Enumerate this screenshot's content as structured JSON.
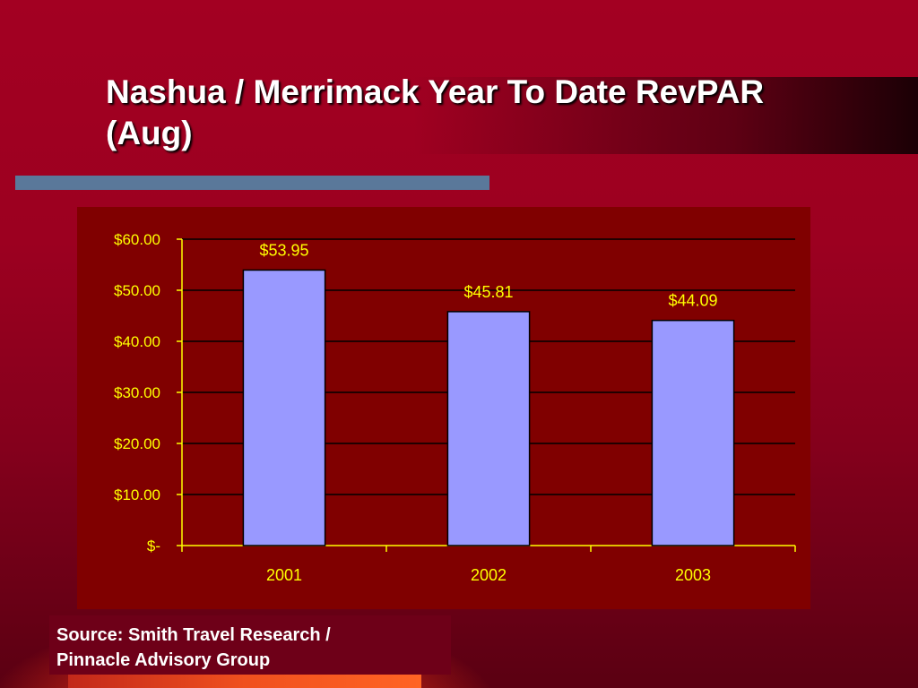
{
  "slide": {
    "title": "Nashua / Merrimack Year To Date RevPAR\n(Aug)",
    "source_lines": [
      "Source: Smith Travel Research /",
      "Pinnacle Advisory Group"
    ]
  },
  "colors": {
    "background": "#a30022",
    "plot_area": "#800000",
    "bar_fill": "#9999ff",
    "axis_and_text": "#ffff00",
    "gridline": "#000000",
    "accent_bar": "#5a789a"
  },
  "chart_data": {
    "type": "bar",
    "categories": [
      "2001",
      "2002",
      "2003"
    ],
    "values": [
      53.95,
      45.81,
      44.09
    ],
    "data_labels": [
      "$53.95",
      "$45.81",
      "$44.09"
    ],
    "y_ticks": [
      0,
      10,
      20,
      30,
      40,
      50,
      60
    ],
    "y_tick_labels": [
      "$-",
      "$10.00",
      "$20.00",
      "$30.00",
      "$40.00",
      "$50.00",
      "$60.00"
    ],
    "ylim": [
      0,
      60
    ],
    "grid": true,
    "legend": false
  }
}
